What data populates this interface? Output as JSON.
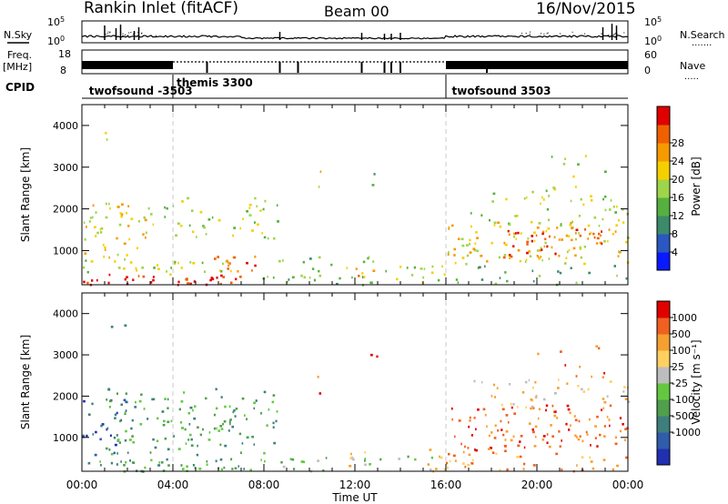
{
  "header": {
    "station": "Rankin Inlet (fitACF)",
    "beam": "Beam 00",
    "date": "16/Nov/2015"
  },
  "left_labels": {
    "nsky": "N.Sky",
    "freq_top": "Freq.",
    "freq_unit": "[MHz]",
    "cpid": "CPID"
  },
  "right_labels": {
    "nsearch": "N.Search",
    "nave": "Nave"
  },
  "nsky_ticks": [
    "10^5",
    "10^0"
  ],
  "nsearch_ticks": [
    "10^5",
    "10^0"
  ],
  "freq_ticks": [
    "18",
    "8"
  ],
  "nave_ticks": [
    "60",
    "0"
  ],
  "cpid_labels": [
    {
      "text": "twofsound -3503",
      "hour": 0.15
    },
    {
      "text": "themis 3300",
      "hour": 4.0
    },
    {
      "text": "twofsound 3503",
      "hour": 16.1
    }
  ],
  "cpid_change_hours": [
    4.0,
    16.0
  ],
  "x_tick_labels": [
    "00:00",
    "04:00",
    "08:00",
    "12:00",
    "16:00",
    "20:00",
    "00:00"
  ],
  "x_axis_label": "Time UT",
  "chart_data": [
    {
      "type": "heatmap",
      "name": "power",
      "ylabel": "Slant Range [km]",
      "y_ticks": [
        1000,
        2000,
        3000,
        4000
      ],
      "ylim": [
        180,
        4500
      ],
      "xlim_hours": [
        0,
        24
      ],
      "colorbar": {
        "label": "Power [dB]",
        "tick_labels": [
          "4",
          "8",
          "12",
          "16",
          "20",
          "24",
          "28"
        ],
        "colors": [
          "#0a1aff",
          "#2a58c0",
          "#3c8a6c",
          "#55b040",
          "#9ed54a",
          "#f5d000",
          "#f59a00",
          "#f06000",
          "#e00000"
        ]
      },
      "blobs": [
        {
          "t0": 0.0,
          "t1": 7.5,
          "r0": 200,
          "r1": 450,
          "dens": 0.85,
          "level": 8
        },
        {
          "t0": 7.5,
          "t1": 12.5,
          "r0": 200,
          "r1": 400,
          "dens": 0.45,
          "level": 3
        },
        {
          "t0": 0.0,
          "t1": 7.0,
          "r0": 450,
          "r1": 800,
          "dens": 0.55,
          "level": 4
        },
        {
          "t0": 5.5,
          "t1": 7.8,
          "r0": 500,
          "r1": 900,
          "dens": 0.7,
          "level": 7
        },
        {
          "t0": 0.0,
          "t1": 2.8,
          "r0": 800,
          "r1": 2200,
          "dens": 0.55,
          "level": 5
        },
        {
          "t0": 2.8,
          "t1": 8.6,
          "r0": 1300,
          "r1": 2300,
          "dens": 0.35,
          "level": 4
        },
        {
          "t0": 8.5,
          "t1": 13.5,
          "r0": 200,
          "r1": 1000,
          "dens": 0.25,
          "level": 3
        },
        {
          "t0": 11.5,
          "t1": 13.0,
          "r0": 300,
          "r1": 700,
          "dens": 0.45,
          "level": 6
        },
        {
          "t0": 13.8,
          "t1": 16.5,
          "r0": 200,
          "r1": 700,
          "dens": 0.5,
          "level": 4
        },
        {
          "t0": 16.5,
          "t1": 24.0,
          "r0": 200,
          "r1": 700,
          "dens": 0.25,
          "level": 3
        },
        {
          "t0": 16.0,
          "t1": 24.0,
          "r0": 700,
          "r1": 1700,
          "dens": 0.55,
          "level": 5
        },
        {
          "t0": 18.5,
          "t1": 23.5,
          "r0": 800,
          "r1": 1600,
          "dens": 0.5,
          "level": 7
        },
        {
          "t0": 17.0,
          "t1": 24.0,
          "r0": 1600,
          "r1": 2500,
          "dens": 0.35,
          "level": 4
        },
        {
          "t0": 20.0,
          "t1": 23.0,
          "r0": 2500,
          "r1": 3400,
          "dens": 0.15,
          "level": 4
        },
        {
          "t0": 1.0,
          "t1": 2.0,
          "r0": 3400,
          "r1": 4000,
          "dens": 0.12,
          "level": 4
        },
        {
          "t0": 10.2,
          "t1": 10.6,
          "r0": 2000,
          "r1": 3000,
          "dens": 0.25,
          "level": 5
        },
        {
          "t0": 12.6,
          "t1": 13.0,
          "r0": 2600,
          "r1": 3400,
          "dens": 0.3,
          "level": 3
        }
      ]
    },
    {
      "type": "heatmap",
      "name": "velocity",
      "ylabel": "Slant Range [km]",
      "y_ticks": [
        1000,
        2000,
        3000,
        4000
      ],
      "ylim": [
        180,
        4500
      ],
      "xlim_hours": [
        0,
        24
      ],
      "colorbar": {
        "label": "Velocity [m s⁻¹]",
        "tick_labels": [
          "1000",
          "500",
          "100",
          "25",
          "-25",
          "-100",
          "-500",
          "-1000"
        ],
        "colors": [
          "#2030b0",
          "#2f5cab",
          "#3e7f7e",
          "#4f9f4c",
          "#63c840",
          "#bdbdbd",
          "#ffd060",
          "#f5a030",
          "#f06020",
          "#e00000"
        ]
      },
      "blobs": [
        {
          "t0": 0.0,
          "t1": 8.0,
          "r0": 200,
          "r1": 500,
          "dens": 0.85,
          "level": 3
        },
        {
          "t0": 0.0,
          "t1": 2.0,
          "r0": 600,
          "r1": 2000,
          "dens": 0.5,
          "level": 1
        },
        {
          "t0": 1.0,
          "t1": 8.6,
          "r0": 600,
          "r1": 2200,
          "dens": 0.45,
          "level": 3
        },
        {
          "t0": 8.5,
          "t1": 16.0,
          "r0": 200,
          "r1": 600,
          "dens": 0.35,
          "level": 4
        },
        {
          "t0": 11.5,
          "t1": 13.0,
          "r0": 300,
          "r1": 700,
          "dens": 0.4,
          "level": 6
        },
        {
          "t0": 15.0,
          "t1": 18.0,
          "r0": 200,
          "r1": 800,
          "dens": 0.55,
          "level": 7
        },
        {
          "t0": 16.0,
          "t1": 24.0,
          "r0": 700,
          "r1": 1800,
          "dens": 0.55,
          "level": 8
        },
        {
          "t0": 18.0,
          "t1": 24.0,
          "r0": 200,
          "r1": 700,
          "dens": 0.35,
          "level": 7
        },
        {
          "t0": 17.0,
          "t1": 24.0,
          "r0": 1700,
          "r1": 2500,
          "dens": 0.35,
          "level": 6
        },
        {
          "t0": 20.0,
          "t1": 23.0,
          "r0": 2500,
          "r1": 3300,
          "dens": 0.15,
          "level": 8
        },
        {
          "t0": 1.0,
          "t1": 2.0,
          "r0": 3400,
          "r1": 4000,
          "dens": 0.12,
          "level": 2
        },
        {
          "t0": 10.2,
          "t1": 10.6,
          "r0": 2000,
          "r1": 3000,
          "dens": 0.25,
          "level": 8
        },
        {
          "t0": 12.6,
          "t1": 13.0,
          "r0": 2600,
          "r1": 3400,
          "dens": 0.3,
          "level": 8
        }
      ]
    }
  ]
}
